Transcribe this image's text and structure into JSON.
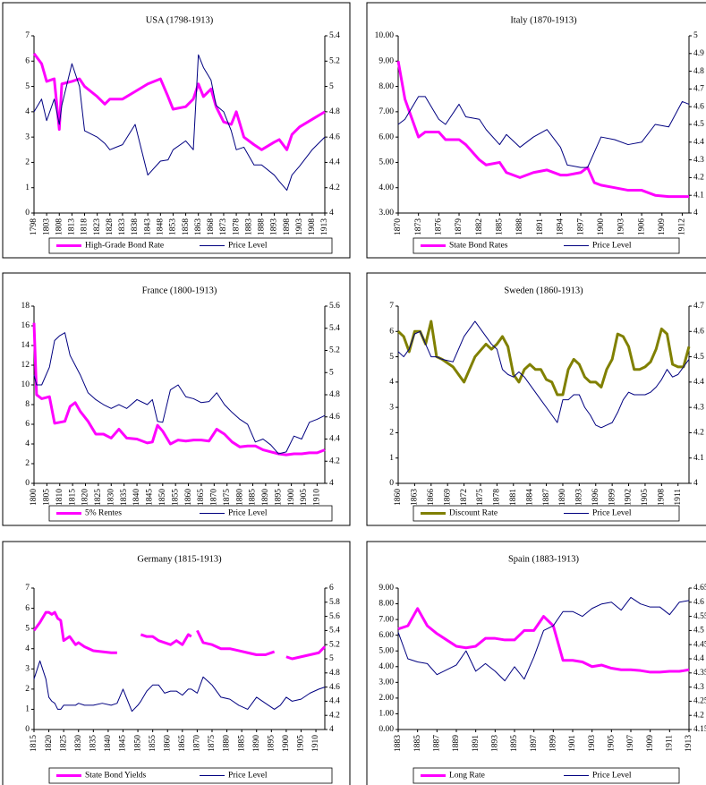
{
  "chart_data": [
    {
      "type": "line",
      "title": "USA (1798-1913)",
      "x": [
        1798,
        1801,
        1803,
        1806,
        1808,
        1809,
        1813,
        1816,
        1818,
        1823,
        1826,
        1828,
        1833,
        1838,
        1843,
        1848,
        1851,
        1853,
        1858,
        1861,
        1863,
        1865,
        1868,
        1870,
        1873,
        1876,
        1878,
        1881,
        1885,
        1888,
        1893,
        1895,
        1898,
        1900,
        1903,
        1908,
        1913
      ],
      "xlim": [
        1798,
        1913
      ],
      "xticks": [
        1798,
        1803,
        1808,
        1813,
        1818,
        1823,
        1828,
        1833,
        1838,
        1843,
        1848,
        1853,
        1858,
        1863,
        1868,
        1873,
        1878,
        1883,
        1888,
        1893,
        1898,
        1903,
        1908,
        1913
      ],
      "ylim": [
        0,
        7
      ],
      "yticks": [
        0,
        1,
        2,
        3,
        4,
        5,
        6,
        7
      ],
      "y2lim": [
        4,
        5.4
      ],
      "y2ticks": [
        4,
        4.2,
        4.4,
        4.6,
        4.8,
        5,
        5.2,
        5.4
      ],
      "series": [
        {
          "name": "High-Grade Bond Rate",
          "color": "#ff00ff",
          "values": [
            6.3,
            5.9,
            5.2,
            5.3,
            3.3,
            5.1,
            5.2,
            5.3,
            5.0,
            4.6,
            4.3,
            4.5,
            4.5,
            4.8,
            5.1,
            5.3,
            4.6,
            4.1,
            4.2,
            4.5,
            5.1,
            4.6,
            4.9,
            4.2,
            3.6,
            3.5,
            4.0,
            3.0,
            2.7,
            2.5,
            2.8,
            2.9,
            2.5,
            3.1,
            3.4,
            3.7,
            4.0
          ]
        },
        {
          "name": "Price Level",
          "color": "#000080",
          "axis": "y2",
          "values": [
            4.8,
            4.9,
            4.73,
            4.9,
            4.7,
            4.85,
            5.18,
            5.0,
            4.65,
            4.6,
            4.55,
            4.5,
            4.54,
            4.7,
            4.3,
            4.41,
            4.42,
            4.5,
            4.57,
            4.5,
            5.25,
            5.15,
            5.05,
            4.85,
            4.8,
            4.65,
            4.5,
            4.52,
            4.38,
            4.38,
            4.3,
            4.25,
            4.18,
            4.3,
            4.37,
            4.5,
            4.6
          ]
        }
      ]
    },
    {
      "type": "line",
      "title": "Italy (1870-1913)",
      "x": [
        1870,
        1871,
        1873,
        1874,
        1876,
        1877,
        1879,
        1880,
        1882,
        1883,
        1885,
        1886,
        1888,
        1890,
        1892,
        1894,
        1895,
        1897,
        1898,
        1899,
        1900,
        1902,
        1904,
        1906,
        1908,
        1910,
        1912,
        1913
      ],
      "xlim": [
        1870,
        1913
      ],
      "xticks": [
        1870,
        1873,
        1876,
        1879,
        1882,
        1885,
        1888,
        1891,
        1894,
        1897,
        1900,
        1903,
        1906,
        1909,
        1912
      ],
      "ylim": [
        3,
        10
      ],
      "yticks": [
        {
          "value": 3,
          "label": "3.00"
        },
        {
          "value": 4,
          "label": "4.00"
        },
        {
          "value": 5,
          "label": "5.00"
        },
        {
          "value": 6,
          "label": "6.00"
        },
        {
          "value": 7,
          "label": "7.00"
        },
        {
          "value": 8,
          "label": "8.00"
        },
        {
          "value": 9,
          "label": "9.00"
        },
        {
          "value": 10,
          "label": "10.00"
        }
      ],
      "y2lim": [
        4,
        5
      ],
      "y2ticks": [
        4,
        4.1,
        4.2,
        4.3,
        4.4,
        4.5,
        4.6,
        4.7,
        4.8,
        4.9,
        5
      ],
      "series": [
        {
          "name": "State Bond Rates",
          "color": "#ff00ff",
          "values": [
            9.0,
            7.5,
            6.0,
            6.2,
            6.2,
            5.9,
            5.9,
            5.7,
            5.1,
            4.9,
            5.0,
            4.6,
            4.4,
            4.6,
            4.7,
            4.5,
            4.5,
            4.6,
            4.8,
            4.2,
            4.1,
            4.0,
            3.9,
            3.9,
            3.7,
            3.65,
            3.65,
            3.65
          ]
        },
        {
          "name": "Price Level",
          "color": "#000080",
          "axis": "y2",
          "values": [
            4.5,
            4.529,
            4.657,
            4.657,
            4.529,
            4.5,
            4.614,
            4.543,
            4.529,
            4.471,
            4.386,
            4.443,
            4.371,
            4.429,
            4.471,
            4.371,
            4.271,
            4.257,
            4.257,
            4.343,
            4.429,
            4.414,
            4.386,
            4.4,
            4.5,
            4.486,
            4.629,
            4.614
          ]
        }
      ]
    },
    {
      "type": "line",
      "title": "France (1800-1913)",
      "x": [
        1800,
        1801,
        1803,
        1806,
        1808,
        1810,
        1812,
        1814,
        1816,
        1818,
        1821,
        1824,
        1827,
        1830,
        1833,
        1836,
        1840,
        1844,
        1846,
        1848,
        1850,
        1853,
        1856,
        1859,
        1862,
        1865,
        1868,
        1871,
        1874,
        1877,
        1880,
        1883,
        1886,
        1889,
        1892,
        1895,
        1898,
        1901,
        1904,
        1907,
        1910,
        1913
      ],
      "xlim": [
        1800,
        1913
      ],
      "xticks": [
        1800,
        1805,
        1810,
        1815,
        1820,
        1825,
        1830,
        1835,
        1840,
        1845,
        1850,
        1855,
        1860,
        1865,
        1870,
        1875,
        1880,
        1885,
        1890,
        1895,
        1900,
        1905,
        1910
      ],
      "ylim": [
        0,
        18
      ],
      "yticks": [
        0,
        2,
        4,
        6,
        8,
        10,
        12,
        14,
        16,
        18
      ],
      "y2lim": [
        4,
        5.6
      ],
      "y2ticks": [
        4,
        4.2,
        4.4,
        4.6,
        4.8,
        5,
        5.2,
        5.4,
        5.6
      ],
      "series": [
        {
          "name": "5% Rentes",
          "color": "#ff00ff",
          "values": [
            16.3,
            9,
            8.6,
            8.8,
            6.1,
            6.2,
            6.3,
            7.8,
            8.2,
            7.3,
            6.3,
            5.0,
            5.0,
            4.6,
            5.5,
            4.6,
            4.5,
            4.1,
            4.2,
            5.9,
            5.3,
            4.0,
            4.4,
            4.3,
            4.4,
            4.4,
            4.3,
            5.5,
            5.0,
            4.2,
            3.7,
            3.8,
            3.8,
            3.4,
            3.2,
            3.0,
            2.9,
            3.0,
            3.0,
            3.1,
            3.1,
            3.4
          ]
        },
        {
          "name": "Price Level",
          "color": "#000080",
          "axis": "y2",
          "values": [
            4.978,
            4.889,
            4.889,
            5.049,
            5.289,
            5.333,
            5.36,
            5.156,
            5.067,
            4.978,
            4.818,
            4.756,
            4.711,
            4.676,
            4.711,
            4.676,
            4.756,
            4.711,
            4.756,
            4.56,
            4.551,
            4.844,
            4.889,
            4.782,
            4.764,
            4.729,
            4.738,
            4.818,
            4.711,
            4.64,
            4.578,
            4.533,
            4.373,
            4.4,
            4.347,
            4.267,
            4.284,
            4.427,
            4.4,
            4.551,
            4.578,
            4.613
          ]
        }
      ]
    },
    {
      "type": "line",
      "title": "Sweden (1860-1913)",
      "x": [
        1860,
        1861,
        1862,
        1863,
        1864,
        1865,
        1866,
        1867,
        1868,
        1870,
        1872,
        1874,
        1876,
        1877,
        1878,
        1879,
        1880,
        1881,
        1882,
        1883,
        1884,
        1885,
        1886,
        1887,
        1888,
        1889,
        1890,
        1891,
        1892,
        1893,
        1894,
        1895,
        1896,
        1897,
        1898,
        1899,
        1900,
        1901,
        1902,
        1903,
        1904,
        1905,
        1906,
        1907,
        1908,
        1909,
        1910,
        1911,
        1912,
        1913
      ],
      "xlim": [
        1860,
        1913
      ],
      "xticks": [
        1860,
        1863,
        1866,
        1869,
        1872,
        1875,
        1878,
        1881,
        1884,
        1887,
        1890,
        1893,
        1896,
        1899,
        1902,
        1905,
        1908,
        1911
      ],
      "ylim": [
        0,
        7
      ],
      "yticks": [
        0,
        1,
        2,
        3,
        4,
        5,
        6,
        7
      ],
      "y2lim": [
        4,
        4.7
      ],
      "y2ticks": [
        4,
        4.1,
        4.2,
        4.3,
        4.4,
        4.5,
        4.6,
        4.7
      ],
      "series": [
        {
          "name": "Discount Rate",
          "color": "#808000",
          "values": [
            6.0,
            5.8,
            5.2,
            6.0,
            6.0,
            5.5,
            6.4,
            5.0,
            4.9,
            4.6,
            4.0,
            5.0,
            5.5,
            5.3,
            5.5,
            5.8,
            5.4,
            4.3,
            4.0,
            4.5,
            4.7,
            4.5,
            4.5,
            4.1,
            4.0,
            3.5,
            3.5,
            4.5,
            4.9,
            4.7,
            4.2,
            4.0,
            4.0,
            3.8,
            4.5,
            4.9,
            5.9,
            5.8,
            5.4,
            4.5,
            4.5,
            4.6,
            4.8,
            5.3,
            6.1,
            5.9,
            4.7,
            4.6,
            4.6,
            5.4
          ]
        },
        {
          "name": "Price Level",
          "color": "#000080",
          "axis": "y2",
          "values": [
            4.52,
            4.5,
            4.53,
            4.59,
            4.6,
            4.55,
            4.5,
            4.5,
            4.49,
            4.48,
            4.58,
            4.64,
            4.58,
            4.55,
            4.53,
            4.45,
            4.43,
            4.42,
            4.44,
            4.42,
            4.39,
            4.36,
            4.33,
            4.3,
            4.27,
            4.24,
            4.33,
            4.33,
            4.35,
            4.35,
            4.3,
            4.27,
            4.23,
            4.22,
            4.23,
            4.24,
            4.28,
            4.33,
            4.36,
            4.35,
            4.35,
            4.35,
            4.36,
            4.38,
            4.41,
            4.45,
            4.42,
            4.43,
            4.46,
            4.49
          ]
        }
      ]
    },
    {
      "type": "line",
      "title": "Germany (1815-1913)",
      "x": [
        1815,
        1817,
        1819,
        1820,
        1821,
        1822,
        1823,
        1824,
        1825,
        1827,
        1829,
        1830,
        1832,
        1835,
        1838,
        1841,
        1843,
        1845,
        1848,
        1850,
        1851,
        1853,
        1855,
        1857,
        1859,
        1861,
        1863,
        1865,
        1867,
        1868,
        1869,
        1870,
        1872,
        1875,
        1878,
        1881,
        1884,
        1887,
        1890,
        1893,
        1896,
        1898,
        1900,
        1902,
        1905,
        1908,
        1911,
        1913
      ],
      "xlim": [
        1815,
        1913
      ],
      "xticks": [
        1815,
        1820,
        1825,
        1830,
        1835,
        1840,
        1845,
        1850,
        1855,
        1860,
        1865,
        1870,
        1875,
        1880,
        1885,
        1890,
        1895,
        1900,
        1905,
        1910
      ],
      "ylim": [
        0,
        7
      ],
      "yticks": [
        0,
        1,
        2,
        3,
        4,
        5,
        6,
        7
      ],
      "y2lim": [
        4,
        6
      ],
      "y2ticks": [
        4,
        4.2,
        4.4,
        4.6,
        4.8,
        5,
        5.2,
        5.4,
        5.6,
        5.8,
        6
      ],
      "series": [
        {
          "name": "State Bond Yields",
          "color": "#ff00ff",
          "values": [
            4.9,
            5.3,
            5.8,
            5.8,
            5.7,
            5.8,
            5.5,
            5.4,
            4.4,
            4.6,
            4.2,
            4.3,
            4.1,
            3.9,
            3.85,
            3.8,
            3.8,
            null,
            null,
            null,
            4.7,
            4.6,
            4.6,
            4.4,
            4.3,
            4.2,
            4.4,
            4.2,
            4.7,
            4.6,
            null,
            4.9,
            4.3,
            4.2,
            4.0,
            4.0,
            3.9,
            3.8,
            3.7,
            3.7,
            3.85,
            null,
            3.6,
            3.5,
            3.6,
            3.7,
            3.8,
            4.1
          ]
        },
        {
          "name": "Price Level",
          "color": "#000080",
          "axis": "y2",
          "values": [
            4.714,
            4.971,
            4.714,
            4.457,
            4.4,
            4.371,
            4.286,
            4.286,
            4.343,
            4.343,
            4.343,
            4.371,
            4.343,
            4.343,
            4.371,
            4.343,
            4.371,
            4.571,
            4.257,
            4.343,
            4.4,
            4.543,
            4.629,
            4.629,
            4.514,
            4.543,
            4.543,
            4.486,
            4.571,
            4.571,
            4.543,
            4.514,
            4.743,
            4.629,
            4.457,
            4.429,
            4.343,
            4.286,
            4.457,
            4.371,
            4.286,
            4.343,
            4.457,
            4.4,
            4.429,
            4.514,
            4.571,
            4.6
          ]
        }
      ]
    },
    {
      "type": "line",
      "title": "Spain (1883-1913)",
      "x": [
        1883,
        1884,
        1885,
        1886,
        1887,
        1888,
        1889,
        1890,
        1891,
        1892,
        1893,
        1894,
        1895,
        1896,
        1897,
        1898,
        1899,
        1900,
        1901,
        1902,
        1903,
        1904,
        1905,
        1906,
        1907,
        1908,
        1909,
        1910,
        1911,
        1912,
        1913
      ],
      "xlim": [
        1883,
        1913
      ],
      "xticks": [
        1883,
        1885,
        1887,
        1889,
        1891,
        1893,
        1895,
        1897,
        1899,
        1901,
        1903,
        1905,
        1907,
        1909,
        1911,
        1913
      ],
      "ylim": [
        0,
        9
      ],
      "yticks": [
        {
          "value": 0,
          "label": "0.00"
        },
        {
          "value": 1,
          "label": "1.00"
        },
        {
          "value": 2,
          "label": "2.00"
        },
        {
          "value": 3,
          "label": "3.00"
        },
        {
          "value": 4,
          "label": "4.00"
        },
        {
          "value": 5,
          "label": "5.00"
        },
        {
          "value": 6,
          "label": "6.00"
        },
        {
          "value": 7,
          "label": "7.00"
        },
        {
          "value": 8,
          "label": "8.00"
        },
        {
          "value": 9,
          "label": "9.00"
        }
      ],
      "y2lim": [
        4.15,
        4.65
      ],
      "y2ticks": [
        4.15,
        4.2,
        4.25,
        4.3,
        4.35,
        4.4,
        4.45,
        4.5,
        4.55,
        4.6,
        4.65
      ],
      "series": [
        {
          "name": "Long Rate",
          "color": "#ff00ff",
          "values": [
            6.4,
            6.6,
            7.7,
            6.6,
            6.1,
            5.7,
            5.3,
            5.2,
            5.3,
            5.8,
            5.8,
            5.7,
            5.7,
            6.3,
            6.3,
            7.2,
            6.6,
            4.4,
            4.4,
            4.3,
            4.0,
            4.1,
            3.9,
            3.8,
            3.8,
            3.75,
            3.65,
            3.65,
            3.7,
            3.7,
            3.8
          ]
        },
        {
          "name": "Price Level",
          "color": "#000080",
          "axis": "y2",
          "values": [
            4.494,
            4.4,
            4.389,
            4.383,
            4.344,
            4.361,
            4.378,
            4.428,
            4.356,
            4.383,
            4.356,
            4.322,
            4.372,
            4.328,
            4.406,
            4.5,
            4.517,
            4.567,
            4.567,
            4.55,
            4.578,
            4.594,
            4.6,
            4.572,
            4.617,
            4.594,
            4.583,
            4.583,
            4.556,
            4.6,
            4.606
          ]
        }
      ]
    }
  ]
}
